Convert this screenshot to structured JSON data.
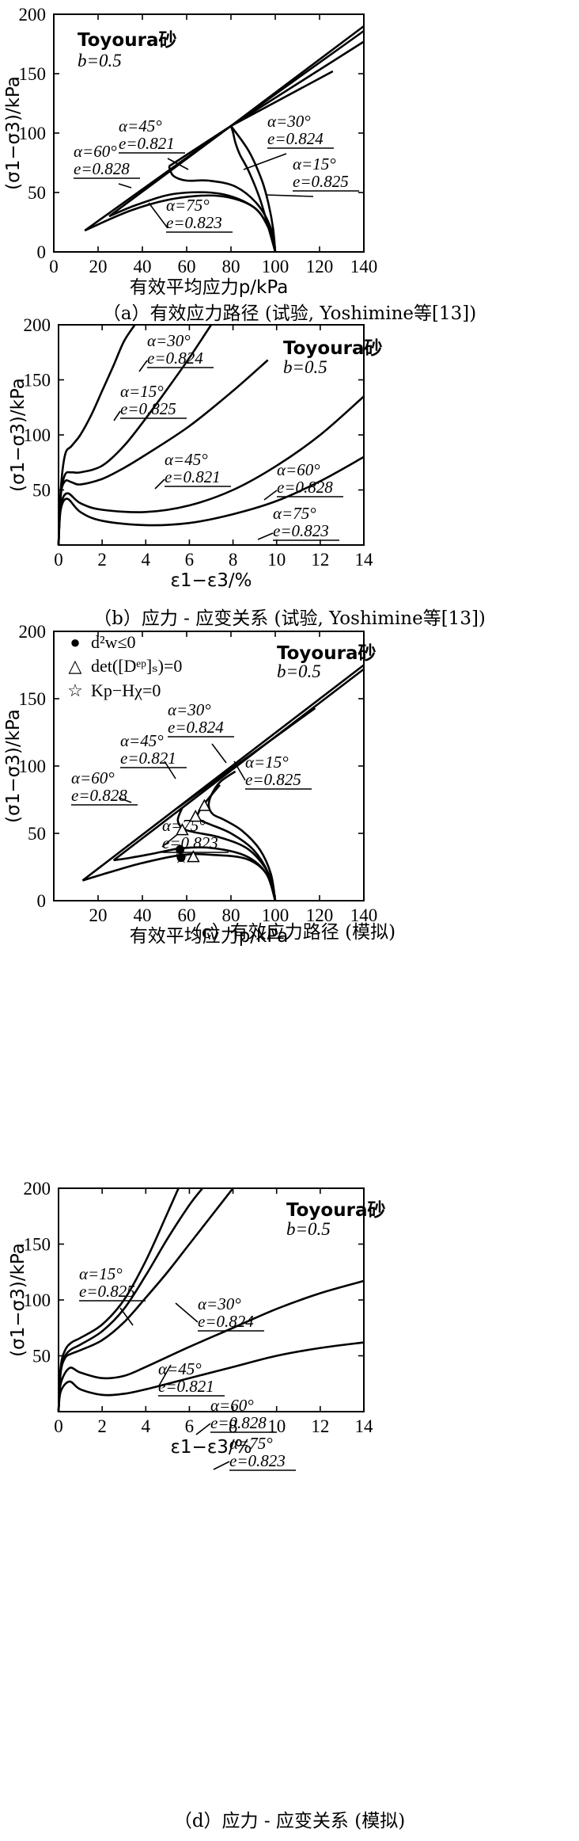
{
  "chart_data": [
    {
      "type": "line",
      "panel": "a",
      "caption": "（a）有效应力路径 (试验, Yoshimine等[13])",
      "sand_label": "Toyoura砂",
      "b_label": "b=0.5",
      "xlabel": "有效平均应力p/kPa",
      "ylabel": "(σ1−σ3)/kPa",
      "xlim": [
        0,
        140
      ],
      "ylim": [
        0,
        200
      ],
      "xticks": [
        "0",
        "20",
        "40",
        "60",
        "80",
        "100",
        "120",
        "140"
      ],
      "yticks": [
        "0",
        "50",
        "100",
        "150",
        "200"
      ],
      "series": [
        {
          "name": "α=30°",
          "alpha": "α=30°",
          "e": "e=0.824",
          "x": [
            100,
            97,
            93,
            88,
            84,
            82,
            81,
            80
          ],
          "y": [
            0,
            20,
            45,
            68,
            82,
            92,
            100,
            106
          ]
        },
        {
          "name": "α=15°",
          "alpha": "α=15°",
          "e": "e=0.825",
          "x": [
            100,
            99,
            97,
            94,
            88,
            80
          ],
          "y": [
            0,
            20,
            40,
            60,
            85,
            106
          ]
        },
        {
          "name": "α=45°",
          "alpha": "α=45°",
          "e": "e=0.821",
          "x": [
            100,
            98,
            92,
            82,
            70,
            60,
            54,
            52
          ],
          "y": [
            0,
            20,
            40,
            55,
            60,
            60,
            64,
            72
          ]
        },
        {
          "name": "α=60°",
          "alpha": "α=60°",
          "e": "e=0.828",
          "x": [
            100,
            97,
            90,
            75,
            55,
            38,
            25
          ],
          "y": [
            0,
            20,
            38,
            49,
            49,
            40,
            30
          ]
        },
        {
          "name": "α=75°",
          "alpha": "α=75°",
          "e": "e=0.823",
          "x": [
            100,
            97,
            90,
            75,
            55,
            35,
            14
          ],
          "y": [
            0,
            20,
            38,
            47,
            45,
            35,
            18
          ]
        }
      ],
      "failure_lines": [
        {
          "x": [
            14,
            80,
            140
          ],
          "y": [
            18,
            106,
            190
          ]
        },
        {
          "x": [
            25,
            80,
            140
          ],
          "y": [
            30,
            106,
            186
          ]
        },
        {
          "x": [
            52,
            80,
            140
          ],
          "y": [
            72,
            106,
            177
          ]
        },
        {
          "x": [
            80,
            126
          ],
          "y": [
            106,
            152
          ]
        }
      ]
    },
    {
      "type": "line",
      "panel": "b",
      "caption": "（b）应力 - 应变关系 (试验, Yoshimine等[13])",
      "sand_label": "Toyoura砂",
      "b_label": "b=0.5",
      "xlabel": "ε1−ε3/%",
      "ylabel": "(σ1−σ3)/kPa",
      "xlim": [
        0,
        14
      ],
      "ylim": [
        0,
        200
      ],
      "xticks": [
        "0",
        "2",
        "4",
        "6",
        "8",
        "10",
        "12",
        "14"
      ],
      "yticks": [
        "50",
        "100",
        "150",
        "200"
      ],
      "series": [
        {
          "name": "α=30°",
          "alpha": "α=30°",
          "e": "e=0.824",
          "x": [
            0,
            0.1,
            0.3,
            0.6,
            1.0,
            1.5,
            2.0,
            2.5,
            3.0,
            3.5
          ],
          "y": [
            0,
            50,
            82,
            90,
            100,
            118,
            140,
            162,
            185,
            200
          ]
        },
        {
          "name": "α=15°",
          "alpha": "α=15°",
          "e": "e=0.825",
          "x": [
            0,
            0.1,
            0.3,
            0.6,
            1.0,
            2.0,
            3.0,
            4.0,
            5.0,
            6.0,
            7.0
          ],
          "y": [
            0,
            45,
            64,
            66,
            66,
            72,
            90,
            115,
            142,
            170,
            200
          ]
        },
        {
          "name": "α=45°",
          "alpha": "α=45°",
          "e": "e=0.821",
          "x": [
            0,
            0.1,
            0.3,
            0.6,
            1.0,
            2.0,
            3.0,
            4.0,
            6.0,
            8.0,
            9.6
          ],
          "y": [
            0,
            45,
            58,
            57,
            55,
            60,
            70,
            82,
            108,
            140,
            168
          ]
        },
        {
          "name": "α=60°",
          "alpha": "α=60°",
          "e": "e=0.828",
          "x": [
            0,
            0.1,
            0.4,
            1.0,
            2.0,
            4.0,
            6.0,
            8.0,
            10.0,
            12.0,
            14.0
          ],
          "y": [
            0,
            35,
            47,
            38,
            32,
            30,
            36,
            50,
            72,
            100,
            135
          ]
        },
        {
          "name": "α=75°",
          "alpha": "α=75°",
          "e": "e=0.823",
          "x": [
            0,
            0.1,
            0.4,
            1.0,
            2.0,
            4.0,
            6.0,
            8.0,
            10.0,
            12.0,
            14.0
          ],
          "y": [
            0,
            32,
            42,
            30,
            22,
            18,
            20,
            28,
            40,
            58,
            80
          ]
        }
      ]
    },
    {
      "type": "line",
      "panel": "c",
      "caption": "（c）有效应力路径 (模拟)",
      "sand_label": "Toyoura砂",
      "b_label": "b=0.5",
      "xlabel": "有效平均应力p/kPa",
      "ylabel": "(σ1−σ3)/kPa",
      "xlim": [
        0,
        140
      ],
      "ylim": [
        0,
        200
      ],
      "xticks": [
        "20",
        "40",
        "60",
        "80",
        "100",
        "120",
        "140"
      ],
      "yticks": [
        "0",
        "50",
        "100",
        "150",
        "200"
      ],
      "legend": [
        {
          "marker": "●",
          "label": "d²w≤0"
        },
        {
          "marker": "△",
          "label": "det([Dᵉᵖ]ₛ)=0"
        },
        {
          "marker": "☆",
          "label": "Kp−Hχ=0"
        }
      ],
      "series": [
        {
          "name": "α=15°",
          "alpha": "α=15°",
          "e": "e=0.825",
          "x": [
            100,
            98,
            93,
            85,
            77,
            72,
            70,
            71,
            75,
            82
          ],
          "y": [
            0,
            20,
            38,
            52,
            60,
            64,
            70,
            78,
            88,
            96
          ]
        },
        {
          "name": "α=30°",
          "alpha": "α=30°",
          "e": "e=0.824",
          "x": [
            100,
            97,
            90,
            80,
            70,
            66,
            65,
            68,
            75
          ],
          "y": [
            0,
            20,
            38,
            50,
            57,
            60,
            64,
            72,
            86
          ]
        },
        {
          "name": "α=45°",
          "alpha": "α=45°",
          "e": "e=0.821",
          "x": [
            100,
            97,
            88,
            75,
            63,
            58,
            56,
            58
          ],
          "y": [
            0,
            20,
            38,
            47,
            51,
            54,
            60,
            69
          ]
        },
        {
          "name": "α=60°",
          "alpha": "α=60°",
          "e": "e=0.828",
          "x": [
            100,
            96,
            87,
            72,
            58,
            45,
            35,
            27
          ],
          "y": [
            0,
            20,
            33,
            39,
            39,
            35,
            32,
            30
          ]
        },
        {
          "name": "α=75°",
          "alpha": "α=75°",
          "e": "e=0.823",
          "x": [
            100,
            96,
            87,
            72,
            58,
            40,
            25,
            13
          ],
          "y": [
            0,
            20,
            31,
            34,
            34,
            28,
            21,
            15
          ]
        }
      ],
      "failure_lines": [
        {
          "x": [
            13,
            140
          ],
          "y": [
            15,
            175
          ]
        },
        {
          "x": [
            27,
            140
          ],
          "y": [
            30,
            172
          ]
        },
        {
          "x": [
            56,
            118
          ],
          "y": [
            69,
            143
          ]
        }
      ],
      "markers": {
        "d2w": {
          "x": [
            57,
            57.5
          ],
          "y": [
            38,
            32
          ]
        },
        "det": {
          "x": [
            58,
            63,
            64,
            68
          ],
          "y": [
            52,
            32,
            62,
            70
          ]
        },
        "kp": {
          "x": [
            57,
            57.5
          ],
          "y": [
            38,
            32
          ]
        }
      }
    },
    {
      "type": "line",
      "panel": "d",
      "caption": "（d）应力 - 应变关系 (模拟)",
      "sand_label": "Toyoura砂",
      "b_label": "b=0.5",
      "xlabel": "ε1−ε3/%",
      "ylabel": "(σ1−σ3)/kPa",
      "xlim": [
        0,
        14
      ],
      "ylim": [
        0,
        200
      ],
      "xticks": [
        "0",
        "2",
        "4",
        "6",
        "8",
        "10",
        "12",
        "14"
      ],
      "yticks": [
        "50",
        "100",
        "150",
        "200"
      ],
      "series": [
        {
          "name": "α=15°",
          "alpha": "α=15°",
          "e": "e=0.825",
          "x": [
            0,
            0.1,
            0.3,
            0.6,
            1.0,
            2.0,
            3.0,
            4.0,
            5.0,
            5.5
          ],
          "y": [
            0,
            40,
            55,
            62,
            66,
            78,
            100,
            135,
            178,
            200
          ]
        },
        {
          "name": "α=30°",
          "alpha": "α=30°",
          "e": "e=0.824",
          "x": [
            0,
            0.1,
            0.3,
            0.6,
            1.0,
            2.0,
            3.0,
            4.0,
            5.0,
            6.0,
            6.6
          ],
          "y": [
            0,
            38,
            50,
            56,
            60,
            72,
            92,
            122,
            155,
            185,
            200
          ]
        },
        {
          "name": "α=45°",
          "alpha": "α=45°",
          "e": "e=0.821",
          "x": [
            0,
            0.1,
            0.3,
            0.6,
            1.0,
            2.0,
            3.0,
            4.0,
            5.0,
            6.0,
            7.0,
            8.0
          ],
          "y": [
            0,
            35,
            48,
            52,
            55,
            64,
            80,
            102,
            125,
            150,
            175,
            200
          ]
        },
        {
          "name": "α=60°",
          "alpha": "α=60°",
          "e": "e=0.828",
          "x": [
            0,
            0.1,
            0.5,
            1.0,
            2.0,
            3.0,
            4.0,
            6.0,
            8.0,
            10.0,
            12.0,
            14.0
          ],
          "y": [
            0,
            25,
            39,
            35,
            30,
            32,
            40,
            58,
            75,
            92,
            106,
            117
          ]
        },
        {
          "name": "α=75°",
          "alpha": "α=75°",
          "e": "e=0.823",
          "x": [
            0,
            0.1,
            0.5,
            1.0,
            2.0,
            3.0,
            4.0,
            6.0,
            8.0,
            10.0,
            12.0,
            14.0
          ],
          "y": [
            0,
            18,
            27,
            20,
            15,
            16,
            20,
            30,
            40,
            50,
            57,
            62
          ]
        }
      ]
    }
  ]
}
